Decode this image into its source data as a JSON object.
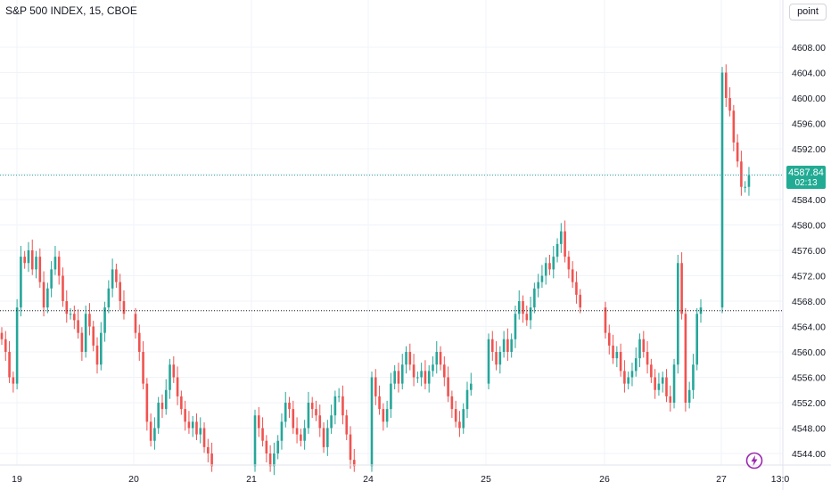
{
  "header": {
    "title": "S&P 500 INDEX, 15, CBOE"
  },
  "toolbar": {
    "scale_mode_label": "point"
  },
  "last_price": {
    "value": "4587.84",
    "countdown": "02:13",
    "color": "#22ab94"
  },
  "colors": {
    "up": "#26a69a",
    "down": "#ef5350",
    "grid": "#f0f3fa",
    "axis_text": "#131722"
  },
  "icons": {
    "logo": "lightning-logo-icon"
  },
  "chart_data": {
    "type": "candlestick",
    "title": "S&P 500 INDEX, 15, CBOE",
    "ylim": [
      4541,
      4612
    ],
    "y_ticks": [
      "4608.00",
      "4604.00",
      "4600.00",
      "4596.00",
      "4592.00",
      "4588.00",
      "4584.00",
      "4580.00",
      "4576.00",
      "4572.00",
      "4568.00",
      "4564.00",
      "4560.00",
      "4556.00",
      "4552.00",
      "4548.00",
      "4544.00"
    ],
    "x_ticks": [
      "19",
      "20",
      "21",
      "24",
      "25",
      "26",
      "27",
      "13:0"
    ],
    "last_value": 4587.84,
    "reference_line": 4566.5,
    "sessions": [
      {
        "day": "19",
        "closes": [
          4562,
          4560,
          4556,
          4555,
          4567,
          4575,
          4574,
          4576,
          4573,
          4575,
          4571,
          4567,
          4570,
          4573,
          4575,
          4572,
          4568,
          4566,
          4566,
          4565,
          4563,
          4560,
          4566,
          4564,
          4561,
          4558,
          4563,
          4567,
          4570,
          4573,
          4571,
          4568,
          4566
        ]
      },
      {
        "day": "20",
        "closes": [
          4563,
          4560,
          4555,
          4549,
          4546,
          4548,
          4552,
          4551,
          4554,
          4558,
          4556,
          4553,
          4551,
          4549,
          4548,
          4549,
          4547,
          4548,
          4545,
          4544,
          4542
        ]
      },
      {
        "day": "21",
        "closes": [
          4550,
          4548,
          4546,
          4544,
          4542,
          4544,
          4546,
          4549,
          4552,
          4551,
          4548,
          4547,
          4546,
          4548,
          4552,
          4551,
          4550,
          4548,
          4545,
          4548,
          4550,
          4553,
          4553,
          4550,
          4547,
          4543,
          4542
        ]
      },
      {
        "day": "24",
        "closes": [
          4556,
          4553,
          4551,
          4549,
          4551,
          4555,
          4557,
          4555,
          4558,
          4560,
          4558,
          4556,
          4556,
          4557,
          4555,
          4557,
          4558,
          4560,
          4558,
          4556,
          4553,
          4551,
          4549,
          4548,
          4551,
          4554,
          4555
        ]
      },
      {
        "day": "25",
        "closes": [
          4562,
          4560,
          4558,
          4560,
          4562,
          4560,
          4562,
          4566,
          4568,
          4566,
          4565,
          4567,
          4570,
          4571,
          4572,
          4574,
          4573,
          4575,
          4577,
          4579,
          4575,
          4573,
          4571,
          4569,
          4567
        ]
      },
      {
        "day": "26",
        "closes": [
          4563,
          4561,
          4559,
          4560,
          4557,
          4555,
          4556,
          4557,
          4559,
          4562,
          4560,
          4558,
          4556,
          4554,
          4555,
          4556,
          4553,
          4552,
          4558,
          4574,
          4566,
          4552,
          4554,
          4558,
          4566,
          4567
        ]
      },
      {
        "day": "27",
        "closes": [
          4604,
          4600,
          4598,
          4593,
          4590,
          4586,
          4586,
          4587.84
        ]
      }
    ]
  }
}
